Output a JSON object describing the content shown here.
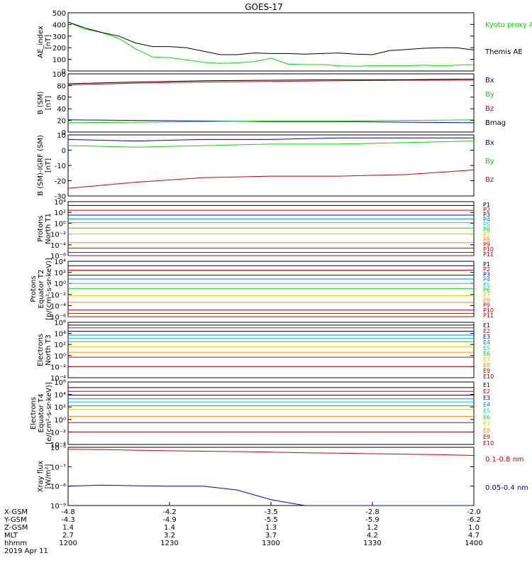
{
  "title": "GOES-17",
  "colors": {
    "black": "#000000",
    "green": "#00dd00",
    "blue": "#0000cc",
    "red": "#cc0000",
    "orange": "#ff8c00",
    "yellow": "#e6c800",
    "cyan": "#00c8e6",
    "teal": "#00a0a0",
    "purple": "#800080",
    "darkred": "#990000"
  },
  "chart_data": [
    {
      "type": "line",
      "ylabel": [
        "AE_index",
        "[nT]"
      ],
      "ylim": [
        0,
        500
      ],
      "yticks": [
        "500",
        "400",
        "300",
        "200",
        "100",
        "0"
      ],
      "x": [
        "1200",
        "1205",
        "1210",
        "1215",
        "1220",
        "1225",
        "1230",
        "1235",
        "1240",
        "1245",
        "1250",
        "1255",
        "1300",
        "1305",
        "1310",
        "1315",
        "1320",
        "1325",
        "1330",
        "1335",
        "1340",
        "1345",
        "1350",
        "1355",
        "1400"
      ],
      "series": [
        {
          "name": "Kyoto proxy AE",
          "color": "#00dd00",
          "values": [
            420,
            360,
            330,
            280,
            190,
            120,
            115,
            95,
            75,
            65,
            70,
            80,
            110,
            60,
            55,
            55,
            45,
            40,
            45,
            45,
            45,
            50,
            45,
            50,
            55
          ]
        },
        {
          "name": "Themis AE",
          "color": "#000000",
          "values": [
            420,
            370,
            330,
            300,
            240,
            210,
            210,
            200,
            170,
            140,
            140,
            155,
            150,
            150,
            145,
            150,
            155,
            145,
            140,
            175,
            185,
            195,
            200,
            200,
            180
          ]
        }
      ]
    },
    {
      "type": "line",
      "ylabel": [
        "B (SM)",
        "[nT]"
      ],
      "ylim": [
        0,
        100
      ],
      "yticks": [
        "100",
        "80",
        "60",
        "40",
        "20",
        "0"
      ],
      "x": [
        "1200",
        "1220",
        "1240",
        "1300",
        "1320",
        "1340",
        "1400"
      ],
      "series": [
        {
          "name": "Bx",
          "color": "#0000cc",
          "values": [
            21,
            20,
            19,
            18,
            18,
            17,
            16
          ]
        },
        {
          "name": "By",
          "color": "#00dd00",
          "values": [
            16,
            17,
            18,
            19,
            19,
            20,
            21
          ]
        },
        {
          "name": "Bz",
          "color": "#cc0000",
          "values": [
            81,
            84,
            86,
            87,
            88,
            89,
            89
          ]
        },
        {
          "name": "Bmag",
          "color": "#000000",
          "values": [
            83,
            86,
            88,
            89,
            90,
            90,
            91
          ]
        }
      ]
    },
    {
      "type": "line",
      "ylabel": [
        "B (SM)-IGRF (SM)",
        "[nT]"
      ],
      "ylim": [
        -30,
        10
      ],
      "yticks": [
        "10",
        "0",
        "-10",
        "-20",
        "-30"
      ],
      "x": [
        "1200",
        "1220",
        "1240",
        "1300",
        "1320",
        "1340",
        "1400"
      ],
      "series": [
        {
          "name": "Bx",
          "color": "#0000cc",
          "values": [
            7,
            6,
            7,
            7,
            8,
            8,
            8
          ]
        },
        {
          "name": "By",
          "color": "#00dd00",
          "values": [
            3,
            2,
            3,
            4,
            4,
            5,
            6
          ]
        },
        {
          "name": "Bz",
          "color": "#cc0000",
          "values": [
            -25,
            -21,
            -18,
            -17,
            -17,
            -16,
            -13
          ]
        }
      ]
    },
    {
      "type": "line",
      "scale": "log",
      "ylabel": [
        "Protons",
        "North T1"
      ],
      "ylim": [
        -6,
        4
      ],
      "yticks": [
        "10⁴",
        "10²",
        "10⁰",
        "10⁻²",
        "10⁻⁴",
        "10⁻⁶"
      ],
      "x": [
        "1200",
        "1400"
      ],
      "channels": [
        {
          "name": "P1",
          "color": "#000000",
          "log10": 3.3
        },
        {
          "name": "P2",
          "color": "#cc0000",
          "log10": 2.4
        },
        {
          "name": "P3",
          "color": "#0000cc",
          "log10": 1.5
        },
        {
          "name": "P4",
          "color": "#0080ff",
          "log10": 0.8
        },
        {
          "name": "P5",
          "color": "#00c8e6",
          "log10": 0.1
        },
        {
          "name": "P6",
          "color": "#00dd00",
          "log10": -0.9
        },
        {
          "name": "P7",
          "color": "#e6c800",
          "log10": -2.0
        },
        {
          "name": "P8",
          "color": "#ff8c00",
          "log10": -3.6
        },
        {
          "name": "P9",
          "color": "#cc0000",
          "log10": -4.6
        },
        {
          "name": "P10",
          "color": "#cc0000",
          "log10": -5.4
        },
        {
          "name": "P11",
          "color": "#cc0000",
          "log10": -6.0
        }
      ]
    },
    {
      "type": "line",
      "scale": "log",
      "ylabel": [
        "Protons",
        "Equator T2",
        "[p/(cm²-s-sr-keV)]"
      ],
      "ylim": [
        -6,
        4
      ],
      "yticks": [
        "10⁴",
        "10²",
        "10⁰",
        "10⁻²",
        "10⁻⁴",
        "10⁻⁶"
      ],
      "x": [
        "1200",
        "1400"
      ],
      "channels": [
        {
          "name": "P1",
          "color": "#000000",
          "log10": 3.2
        },
        {
          "name": "P2",
          "color": "#cc0000",
          "log10": 2.4
        },
        {
          "name": "P3",
          "color": "#0000cc",
          "log10": 1.5
        },
        {
          "name": "P4",
          "color": "#0080ff",
          "log10": 0.8
        },
        {
          "name": "P5",
          "color": "#00c8e6",
          "log10": 0.0
        },
        {
          "name": "P6",
          "color": "#00dd00",
          "log10": -0.9
        },
        {
          "name": "P7",
          "color": "#e6c800",
          "log10": -2.2
        },
        {
          "name": "P8",
          "color": "#ff8c00",
          "log10": -3.4
        },
        {
          "name": "P9",
          "color": "#cc0000",
          "log10": -4.8
        },
        {
          "name": "P10",
          "color": "#cc0000",
          "log10": -5.4
        },
        {
          "name": "P11",
          "color": "#cc0000",
          "log10": -6.0
        }
      ]
    },
    {
      "type": "line",
      "scale": "log",
      "ylabel": [
        "Electrons",
        "North T3"
      ],
      "ylim": [
        -4,
        6
      ],
      "yticks": [
        "10⁶",
        "10⁴",
        "10²",
        "10⁰",
        "10⁻²",
        "10⁻⁴"
      ],
      "x": [
        "1200",
        "1400"
      ],
      "channels": [
        {
          "name": "E1",
          "color": "#000000",
          "log10": 5.5
        },
        {
          "name": "E2",
          "color": "#cc0000",
          "log10": 5.0
        },
        {
          "name": "E3",
          "color": "#0000cc",
          "log10": 4.4
        },
        {
          "name": "E4",
          "color": "#0080ff",
          "log10": 3.7
        },
        {
          "name": "E5",
          "color": "#00c8e6",
          "log10": 3.1
        },
        {
          "name": "E6",
          "color": "#00dd00",
          "log10": 2.5
        },
        {
          "name": "E7",
          "color": "#e6c800",
          "log10": 1.6
        },
        {
          "name": "E8",
          "color": "#ff8c00",
          "log10": 0.6
        },
        {
          "name": "E9",
          "color": "#cc0000",
          "log10": -0.3
        },
        {
          "name": "E10",
          "color": "#990000",
          "log10": -2.0
        }
      ]
    },
    {
      "type": "line",
      "scale": "log",
      "ylabel": [
        "Electrons",
        "Equator T4",
        "[e/(cm²-s-sr-keV)]"
      ],
      "ylim": [
        -4,
        6
      ],
      "yticks": [
        "10⁶",
        "10⁴",
        "10²",
        "10⁰",
        "10⁻²",
        "10⁻⁴"
      ],
      "x": [
        "1200",
        "1400"
      ],
      "channels": [
        {
          "name": "E1",
          "color": "#000000",
          "log10": 5.1
        },
        {
          "name": "E2",
          "color": "#cc0000",
          "log10": 4.5
        },
        {
          "name": "E3",
          "color": "#0000cc",
          "log10": 3.9
        },
        {
          "name": "E4",
          "color": "#0080ff",
          "log10": 3.3
        },
        {
          "name": "E5",
          "color": "#00c8e6",
          "log10": 2.8
        },
        {
          "name": "E6",
          "color": "#00dd00",
          "log10": 2.2
        },
        {
          "name": "E7",
          "color": "#e6c800",
          "log10": 1.6
        },
        {
          "name": "E8",
          "color": "#ff8c00",
          "log10": 0.5
        },
        {
          "name": "E9",
          "color": "#cc0000",
          "log10": -0.5
        },
        {
          "name": "E10",
          "color": "#990000",
          "log10": -2.0
        }
      ]
    },
    {
      "type": "line",
      "scale": "log",
      "ylabel": [
        "Xray flux",
        "[W/m²]"
      ],
      "ylim": [
        -9,
        -6
      ],
      "yticks": [
        "10⁻⁶",
        "10⁻⁷",
        "10⁻⁸",
        "10⁻⁹"
      ],
      "x": [
        "1200",
        "1210",
        "1220",
        "1230",
        "1240",
        "1250",
        "1300",
        "1310",
        "1320",
        "1330",
        "1340",
        "1350",
        "1400"
      ],
      "series": [
        {
          "name": "0.1-0.8 nm",
          "color": "#cc0000",
          "values_log10": [
            -6.1,
            -6.12,
            -6.15,
            -6.18,
            -6.2,
            -6.22,
            -6.25,
            -6.28,
            -6.3,
            -6.33,
            -6.36,
            -6.38,
            -6.42
          ]
        },
        {
          "name": "0.05-0.4 nm",
          "color": "#0000cc",
          "values_log10": [
            -8.0,
            -7.95,
            -7.98,
            -8.0,
            -8.0,
            -8.2,
            -8.7,
            -9.0,
            -9.0,
            -9.1,
            -9.2,
            -9.2,
            -9.2
          ]
        }
      ]
    }
  ],
  "xaxis": {
    "rows": [
      {
        "label": "X-GSM",
        "values": [
          "-4.8",
          "-4.2",
          "-3.5",
          "-2.8",
          "-2.0"
        ]
      },
      {
        "label": "Y-GSM",
        "values": [
          "-4.3",
          "-4.9",
          "-5.5",
          "-5.9",
          "-6.2"
        ]
      },
      {
        "label": "Z-GSM",
        "values": [
          "1.4",
          "1.4",
          "1.3",
          "1.2",
          "1.0"
        ]
      },
      {
        "label": "MLT",
        "values": [
          "2.7",
          "3.2",
          "3.7",
          "4.2",
          "4.7"
        ]
      },
      {
        "label": "hhmm",
        "values": [
          "1200",
          "1230",
          "1300",
          "1330",
          "1400"
        ]
      }
    ],
    "date": "2019 Apr 11"
  }
}
